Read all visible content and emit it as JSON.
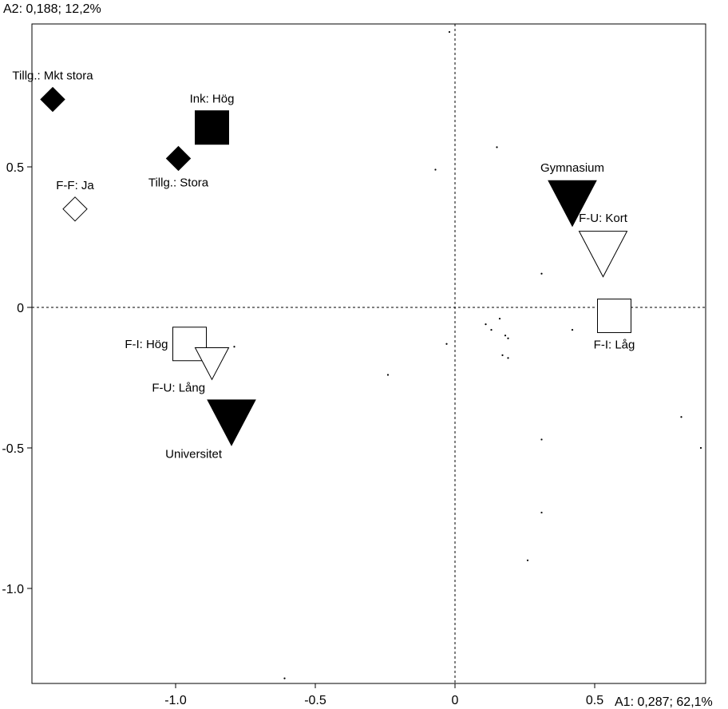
{
  "chart_data": {
    "type": "scatter",
    "title": "",
    "xlabel": "A1: 0,287; 62,1%",
    "ylabel": "A2: 0,188; 12,2%",
    "xlim": [
      -1.45,
      0.9
    ],
    "ylim": [
      -1.33,
      1.0
    ],
    "grid": false,
    "reference_lines": {
      "x": 0,
      "y": 0,
      "style": "dashed"
    },
    "x_ticks": [
      {
        "value": -1.0,
        "label": "-1.0"
      },
      {
        "value": -0.5,
        "label": "-0.5"
      },
      {
        "value": 0,
        "label": "0"
      },
      {
        "value": 0.5,
        "label": "0.5"
      }
    ],
    "y_ticks": [
      {
        "value": 0.5,
        "label": "0.5"
      },
      {
        "value": 0,
        "label": "0"
      },
      {
        "value": -0.5,
        "label": "-0.5"
      },
      {
        "value": -1.0,
        "label": "-1.0"
      }
    ],
    "categories": [
      {
        "label": "Tillg.: Mkt stora",
        "x": -1.44,
        "y": 0.74,
        "shape": "diamond",
        "filled": true,
        "size": "small",
        "label_pos": "above"
      },
      {
        "label": "Ink: Hög",
        "x": -0.87,
        "y": 0.64,
        "shape": "square",
        "filled": true,
        "size": "medium",
        "label_pos": "above"
      },
      {
        "label": "Tillg.: Stora",
        "x": -0.99,
        "y": 0.53,
        "shape": "diamond",
        "filled": true,
        "size": "small",
        "label_pos": "below"
      },
      {
        "label": "F-F: Ja",
        "x": -1.36,
        "y": 0.35,
        "shape": "diamond",
        "filled": false,
        "size": "small",
        "label_pos": "above"
      },
      {
        "label": "Gymnasium",
        "x": 0.42,
        "y": 0.37,
        "shape": "triangle-down",
        "filled": true,
        "size": "large",
        "label_pos": "above"
      },
      {
        "label": "F-U: Kort",
        "x": 0.53,
        "y": 0.19,
        "shape": "triangle-down",
        "filled": false,
        "size": "large",
        "label_pos": "above"
      },
      {
        "label": "F-I: Låg",
        "x": 0.57,
        "y": -0.03,
        "shape": "square",
        "filled": false,
        "size": "medium",
        "label_pos": "below"
      },
      {
        "label": "F-I: Hög",
        "x": -0.95,
        "y": -0.13,
        "shape": "square",
        "filled": false,
        "size": "medium",
        "label_pos": "left"
      },
      {
        "label": "F-U: Lång",
        "x": -0.87,
        "y": -0.2,
        "shape": "triangle-down",
        "filled": false,
        "size": "medium",
        "label_pos": "below-left"
      },
      {
        "label": "Universitet",
        "x": -0.8,
        "y": -0.41,
        "shape": "triangle-down",
        "filled": true,
        "size": "large",
        "label_pos": "below-left"
      }
    ],
    "individuals": [
      [
        -0.02,
        0.98
      ],
      [
        0.15,
        0.57
      ],
      [
        -0.07,
        0.49
      ],
      [
        0.31,
        0.12
      ],
      [
        0.11,
        -0.06
      ],
      [
        0.13,
        -0.08
      ],
      [
        0.16,
        -0.04
      ],
      [
        0.18,
        -0.1
      ],
      [
        0.19,
        -0.11
      ],
      [
        0.42,
        -0.08
      ],
      [
        -0.03,
        -0.13
      ],
      [
        0.17,
        -0.17
      ],
      [
        0.19,
        -0.18
      ],
      [
        -0.24,
        -0.24
      ],
      [
        0.31,
        -0.47
      ],
      [
        0.81,
        -0.39
      ],
      [
        0.88,
        -0.5
      ],
      [
        0.31,
        -0.73
      ],
      [
        0.26,
        -0.9
      ],
      [
        -0.61,
        -1.32
      ],
      [
        -0.79,
        -0.14
      ]
    ]
  }
}
